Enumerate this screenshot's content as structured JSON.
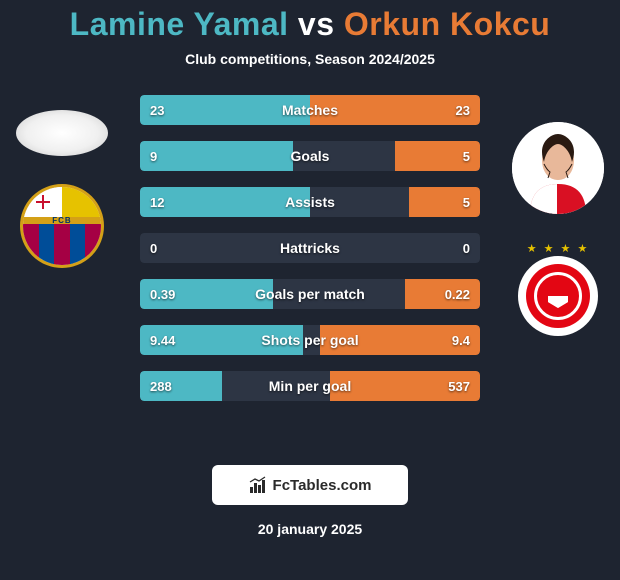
{
  "title_left": "Lamine Yamal",
  "title_vs": "vs",
  "title_right": "Orkun Kokcu",
  "title_left_color": "#4db8c4",
  "title_right_color": "#e87b35",
  "subtitle": "Club competitions, Season 2024/2025",
  "bar_bg_color": "#2d3544",
  "left_color": "#4db8c4",
  "right_color": "#e87b35",
  "stats": [
    {
      "label": "Matches",
      "left_val": "23",
      "right_val": "23",
      "left_pct": 50,
      "right_pct": 50
    },
    {
      "label": "Goals",
      "left_val": "9",
      "right_val": "5",
      "left_pct": 45,
      "right_pct": 25
    },
    {
      "label": "Assists",
      "left_val": "12",
      "right_val": "5",
      "left_pct": 50,
      "right_pct": 21
    },
    {
      "label": "Hattricks",
      "left_val": "0",
      "right_val": "0",
      "left_pct": 0,
      "right_pct": 0
    },
    {
      "label": "Goals per match",
      "left_val": "0.39",
      "right_val": "0.22",
      "left_pct": 39,
      "right_pct": 22
    },
    {
      "label": "Shots per goal",
      "left_val": "9.44",
      "right_val": "9.4",
      "left_pct": 48,
      "right_pct": 47
    },
    {
      "label": "Min per goal",
      "left_val": "288",
      "right_val": "537",
      "left_pct": 24,
      "right_pct": 44
    }
  ],
  "fcb_text": "FCB",
  "fcb_stripe_colors": [
    "#a50044",
    "#004d98",
    "#a50044",
    "#004d98",
    "#a50044"
  ],
  "branding": "FcTables.com",
  "date": "20 january 2025"
}
